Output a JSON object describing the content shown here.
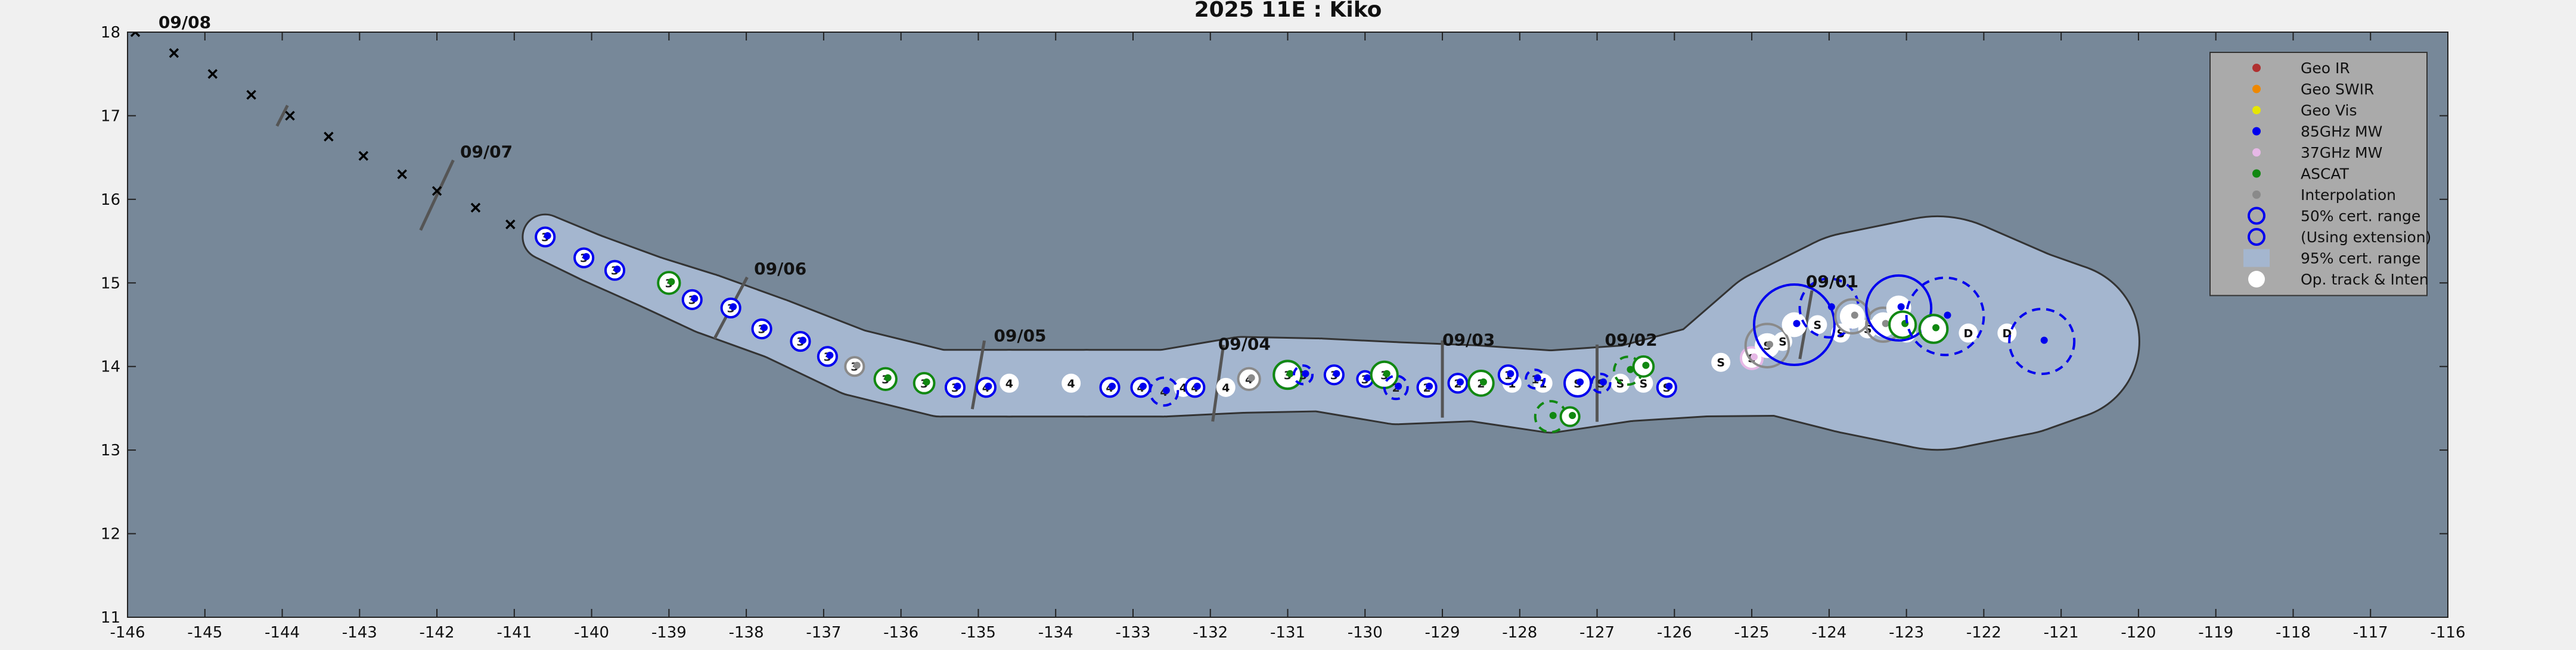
{
  "chart_data": {
    "type": "scatter",
    "title": "2025  11E :  Kiko",
    "xlabel": "",
    "ylabel": "",
    "xlim": [
      -146,
      -116
    ],
    "ylim": [
      11,
      18
    ],
    "x_ticks": [
      "-146",
      "-145",
      "-144",
      "-143",
      "-142",
      "-141",
      "-140",
      "-139",
      "-138",
      "-137",
      "-136",
      "-135",
      "-134",
      "-133",
      "-132",
      "-131",
      "-130",
      "-129",
      "-128",
      "-127",
      "-126",
      "-125",
      "-124",
      "-123",
      "-122",
      "-121",
      "-120",
      "-119",
      "-118",
      "-117",
      "-116"
    ],
    "y_ticks": [
      "11",
      "12",
      "13",
      "14",
      "15",
      "16",
      "17",
      "18"
    ],
    "grid": false,
    "legend_position": "top-right",
    "colors": {
      "background": "#778899",
      "cone": "#a4b6cf",
      "mw85": "#0000ee",
      "mw37": "#e6b8e6",
      "ascat": "#118811",
      "interp": "#8a8a8a",
      "track": "#ffffff"
    },
    "legend": [
      {
        "label": "Geo IR",
        "marker": "dot",
        "color": "#b03030"
      },
      {
        "label": "Geo SWIR",
        "marker": "dot",
        "color": "#ee8800"
      },
      {
        "label": "Geo Vis",
        "marker": "dot",
        "color": "#e6e600"
      },
      {
        "label": "85GHz MW",
        "marker": "dot",
        "color": "#0000ee"
      },
      {
        "label": "37GHz MW",
        "marker": "dot",
        "color": "#e6b8e6"
      },
      {
        "label": "ASCAT",
        "marker": "dot",
        "color": "#118811"
      },
      {
        "label": "Interpolation",
        "marker": "dot",
        "color": "#8a8a8a"
      },
      {
        "label": "50% cert. range",
        "marker": "circle",
        "color": "#0000ee"
      },
      {
        "label": "(Using extension)",
        "marker": "dashcircle",
        "color": "#0000ee"
      },
      {
        "label": "95% cert. range",
        "marker": "patch",
        "color": "#a4b6cf"
      },
      {
        "label": "Op. track & Inten",
        "marker": "bigdot",
        "color": "#ffffff"
      }
    ],
    "date_labels": [
      {
        "text": "09/07",
        "x": -141.7,
        "y": 16.5
      },
      {
        "text": "09/06",
        "x": -137.9,
        "y": 15.1
      },
      {
        "text": "09/05",
        "x": -134.8,
        "y": 14.3
      },
      {
        "text": "09/04",
        "x": -131.9,
        "y": 14.2
      },
      {
        "text": "09/03",
        "x": -129.0,
        "y": 14.25
      },
      {
        "text": "09/02",
        "x": -126.9,
        "y": 14.25
      },
      {
        "text": "09/01",
        "x": -124.3,
        "y": 14.95
      },
      {
        "text": "09/08",
        "x": -145.6,
        "y": 18.05
      }
    ],
    "day_ticks": [
      {
        "x": -144.0,
        "y": 17.0,
        "len": 0.3,
        "angle": 63
      },
      {
        "x": -142.0,
        "y": 16.05,
        "len": 1.0,
        "angle": 65
      },
      {
        "x": -138.2,
        "y": 14.7,
        "len": 0.9,
        "angle": 62
      },
      {
        "x": -135.0,
        "y": 13.9,
        "len": 0.9,
        "angle": 80
      },
      {
        "x": -131.9,
        "y": 13.8,
        "len": 1.0,
        "angle": 82
      },
      {
        "x": -129.0,
        "y": 13.85,
        "len": 1.0,
        "angle": 90
      },
      {
        "x": -127.0,
        "y": 13.8,
        "len": 1.0,
        "angle": 90
      },
      {
        "x": -124.3,
        "y": 14.5,
        "len": 0.9,
        "angle": 80
      }
    ],
    "forecast_track": {
      "x": [
        -145.9,
        -145.4,
        -144.9,
        -144.4,
        -143.9,
        -143.4,
        -142.95,
        -142.45,
        -142.0,
        -141.5,
        -141.05
      ],
      "y": [
        18.0,
        17.75,
        17.5,
        17.25,
        17.0,
        16.75,
        16.52,
        16.3,
        16.1,
        15.9,
        15.7
      ]
    },
    "cone": {
      "x": [
        -140.6,
        -140.0,
        -139.2,
        -138.5,
        -137.6,
        -136.6,
        -135.5,
        -134.6,
        -133.6,
        -132.6,
        -131.6,
        -130.6,
        -129.6,
        -128.6,
        -127.6,
        -126.6,
        -125.6,
        -124.6,
        -123.6,
        -122.6,
        -121.6,
        -121.0
      ],
      "y": [
        15.55,
        15.3,
        15.0,
        14.75,
        14.45,
        14.05,
        13.8,
        13.8,
        13.8,
        13.8,
        13.9,
        13.9,
        13.8,
        13.8,
        13.7,
        13.8,
        13.95,
        14.3,
        14.4,
        14.4,
        14.3,
        14.3
      ],
      "r": [
        0.28,
        0.3,
        0.33,
        0.38,
        0.38,
        0.42,
        0.42,
        0.42,
        0.42,
        0.42,
        0.48,
        0.46,
        0.52,
        0.48,
        0.52,
        0.48,
        0.58,
        0.95,
        1.3,
        1.5,
        1.2,
        1.0
      ]
    },
    "track_dots": [
      {
        "x": -134.6,
        "y": 13.8,
        "label": "4"
      },
      {
        "x": -133.8,
        "y": 13.8,
        "label": "4"
      },
      {
        "x": -132.35,
        "y": 13.75,
        "label": "4"
      },
      {
        "x": -131.8,
        "y": 13.75,
        "label": "4"
      },
      {
        "x": -128.1,
        "y": 13.8,
        "label": "1"
      },
      {
        "x": -127.7,
        "y": 13.8,
        "label": "1"
      },
      {
        "x": -127.3,
        "y": 13.8,
        "label": "S"
      },
      {
        "x": -126.7,
        "y": 13.8,
        "label": "S"
      },
      {
        "x": -126.4,
        "y": 13.8,
        "label": "S"
      },
      {
        "x": -125.4,
        "y": 14.05,
        "label": "S"
      },
      {
        "x": -124.6,
        "y": 14.3,
        "label": "S"
      },
      {
        "x": -124.15,
        "y": 14.5,
        "label": "S"
      },
      {
        "x": -123.85,
        "y": 14.4,
        "label": "S"
      },
      {
        "x": -123.5,
        "y": 14.45,
        "label": "S"
      },
      {
        "x": -123.0,
        "y": 14.4,
        "label": "S"
      },
      {
        "x": -122.6,
        "y": 14.4,
        "label": "S"
      },
      {
        "x": -122.2,
        "y": 14.4,
        "label": "D"
      },
      {
        "x": -121.7,
        "y": 14.4,
        "label": "D"
      }
    ],
    "fixes": [
      {
        "type": "mw85",
        "x": -140.6,
        "y": 15.55,
        "r": 0.12,
        "label": "3"
      },
      {
        "type": "mw85",
        "x": -140.1,
        "y": 15.3,
        "r": 0.12,
        "label": "3"
      },
      {
        "type": "mw85",
        "x": -139.7,
        "y": 15.15,
        "r": 0.12,
        "label": "3"
      },
      {
        "type": "ascat",
        "x": -139.0,
        "y": 15.0,
        "r": 0.14,
        "label": "3"
      },
      {
        "type": "mw85",
        "x": -138.7,
        "y": 14.8,
        "r": 0.12,
        "label": "3"
      },
      {
        "type": "mw85",
        "x": -138.2,
        "y": 14.7,
        "r": 0.12,
        "label": "3"
      },
      {
        "type": "mw85",
        "x": -137.8,
        "y": 14.45,
        "r": 0.12,
        "label": "3"
      },
      {
        "type": "mw85",
        "x": -137.3,
        "y": 14.3,
        "r": 0.12,
        "label": "3"
      },
      {
        "type": "mw85",
        "x": -136.95,
        "y": 14.12,
        "r": 0.12,
        "label": "3"
      },
      {
        "type": "interp",
        "x": -136.6,
        "y": 14.0,
        "r": 0.12,
        "label": "3"
      },
      {
        "type": "ascat",
        "x": -136.2,
        "y": 13.85,
        "r": 0.14,
        "label": "3"
      },
      {
        "type": "ascat",
        "x": -135.7,
        "y": 13.8,
        "r": 0.13,
        "label": "3"
      },
      {
        "type": "mw85",
        "x": -135.3,
        "y": 13.75,
        "r": 0.12,
        "label": "3"
      },
      {
        "type": "mw85",
        "x": -134.9,
        "y": 13.75,
        "r": 0.12,
        "label": "4"
      },
      {
        "type": "mw85",
        "x": -133.3,
        "y": 13.75,
        "r": 0.12,
        "label": "4"
      },
      {
        "type": "mw85",
        "x": -132.9,
        "y": 13.75,
        "r": 0.12,
        "label": "4"
      },
      {
        "type": "mw85",
        "x": -132.6,
        "y": 13.7,
        "r": 0.18,
        "dashed": true,
        "label": "4"
      },
      {
        "type": "mw85",
        "x": -132.2,
        "y": 13.75,
        "r": 0.12,
        "label": "4"
      },
      {
        "type": "interp",
        "x": -131.5,
        "y": 13.85,
        "r": 0.14,
        "label": "4"
      },
      {
        "type": "ascat",
        "x": -131.0,
        "y": 13.9,
        "r": 0.18,
        "label": "3"
      },
      {
        "type": "mw85",
        "x": -130.8,
        "y": 13.9,
        "r": 0.12,
        "dashed": true,
        "label": "3"
      },
      {
        "type": "mw85",
        "x": -130.4,
        "y": 13.9,
        "r": 0.12,
        "label": "3"
      },
      {
        "type": "mw85",
        "x": -130.0,
        "y": 13.85,
        "r": 0.1,
        "label": "3"
      },
      {
        "type": "ascat",
        "x": -129.75,
        "y": 13.9,
        "r": 0.17,
        "label": "3"
      },
      {
        "type": "mw85",
        "x": -129.6,
        "y": 13.75,
        "r": 0.15,
        "dashed": true,
        "label": "2"
      },
      {
        "type": "mw85",
        "x": -129.2,
        "y": 13.75,
        "r": 0.12,
        "label": "2"
      },
      {
        "type": "mw85",
        "x": -128.8,
        "y": 13.8,
        "r": 0.12,
        "label": "2"
      },
      {
        "type": "ascat",
        "x": -128.5,
        "y": 13.8,
        "r": 0.16,
        "label": "2"
      },
      {
        "type": "mw85",
        "x": -128.15,
        "y": 13.9,
        "r": 0.12,
        "label": "1"
      },
      {
        "type": "mw85",
        "x": -127.8,
        "y": 13.85,
        "r": 0.12,
        "dashed": true,
        "label": "1"
      },
      {
        "type": "ascat",
        "x": -127.6,
        "y": 13.4,
        "r": 0.2,
        "dashed": true,
        "label": ""
      },
      {
        "type": "ascat",
        "x": -127.35,
        "y": 13.4,
        "r": 0.12,
        "label": ""
      },
      {
        "type": "mw85",
        "x": -127.25,
        "y": 13.8,
        "r": 0.17,
        "label": "S"
      },
      {
        "type": "mw85",
        "x": -126.95,
        "y": 13.8,
        "r": 0.12,
        "dashed": true,
        "label": "S"
      },
      {
        "type": "ascat",
        "x": -126.6,
        "y": 13.95,
        "r": 0.18,
        "dashed": true,
        "label": ""
      },
      {
        "type": "ascat",
        "x": -126.4,
        "y": 14.0,
        "r": 0.13,
        "label": ""
      },
      {
        "type": "mw85",
        "x": -126.1,
        "y": 13.75,
        "r": 0.12,
        "label": "S"
      },
      {
        "type": "mw37",
        "x": -125.0,
        "y": 14.1,
        "r": 0.14,
        "label": "S"
      },
      {
        "type": "interp",
        "x": -124.8,
        "y": 14.25,
        "r": 0.28,
        "label": "S"
      },
      {
        "type": "mw85",
        "x": -124.45,
        "y": 14.5,
        "r": 0.52,
        "label": ""
      },
      {
        "type": "mw85",
        "x": -124.0,
        "y": 14.7,
        "r": 0.38,
        "dashed": true,
        "label": ""
      },
      {
        "type": "interp",
        "x": -123.7,
        "y": 14.6,
        "r": 0.22,
        "label": ""
      },
      {
        "type": "interp",
        "x": -123.3,
        "y": 14.5,
        "r": 0.22,
        "label": ""
      },
      {
        "type": "mw85",
        "x": -123.1,
        "y": 14.7,
        "r": 0.42,
        "label": ""
      },
      {
        "type": "ascat",
        "x": -123.05,
        "y": 14.5,
        "r": 0.17,
        "label": ""
      },
      {
        "type": "ascat",
        "x": -122.65,
        "y": 14.45,
        "r": 0.18,
        "label": ""
      },
      {
        "type": "mw85",
        "x": -122.5,
        "y": 14.6,
        "r": 0.5,
        "dashed": true,
        "label": ""
      },
      {
        "type": "mw85",
        "x": -121.25,
        "y": 14.3,
        "r": 0.42,
        "dashed": true,
        "label": ""
      }
    ]
  }
}
